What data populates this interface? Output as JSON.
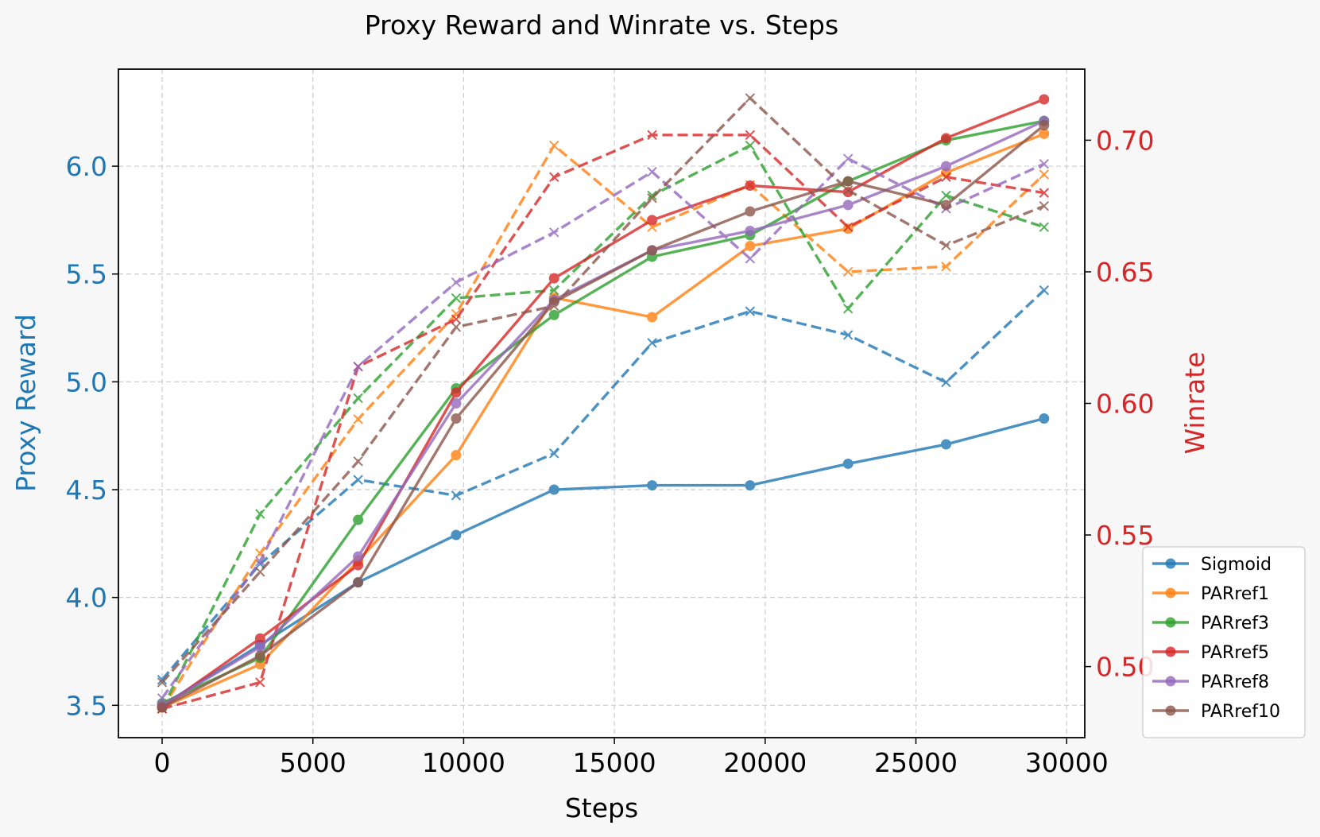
{
  "chart_data": {
    "type": "line",
    "title": "Proxy Reward and Winrate vs. Steps",
    "xlabel": "Steps",
    "ylabel_left": "Proxy Reward",
    "ylabel_right": "Winrate",
    "xlim": [
      -1450,
      30600
    ],
    "ylim_left": [
      3.35,
      6.45
    ],
    "ylim_right": [
      0.473,
      0.727
    ],
    "x_ticks": [
      0,
      5000,
      10000,
      15000,
      20000,
      25000,
      30000
    ],
    "y_ticks_left": [
      3.5,
      4.0,
      4.5,
      5.0,
      5.5,
      6.0
    ],
    "y_ticks_right": [
      0.5,
      0.55,
      0.6,
      0.65,
      0.7
    ],
    "x_tick_labels": [
      "0",
      "5000",
      "10000",
      "15000",
      "20000",
      "25000",
      "30000"
    ],
    "y_tick_labels_left": [
      "3.5",
      "4.0",
      "4.5",
      "5.0",
      "5.5",
      "6.0"
    ],
    "y_tick_labels_right": [
      "0.50",
      "0.55",
      "0.60",
      "0.65",
      "0.70"
    ],
    "grid": true,
    "legend_position": "right",
    "left_axis_color": "#1f77b4",
    "right_axis_color": "#d62728",
    "x": [
      0,
      3250,
      6500,
      9750,
      13000,
      16250,
      19500,
      22750,
      26000,
      29250
    ],
    "series": [
      {
        "name": "Sigmoid",
        "color": "#1f77b4",
        "proxy_reward": [
          3.5,
          3.78,
          4.07,
          4.29,
          4.5,
          4.52,
          4.52,
          4.62,
          4.71,
          4.83
        ],
        "winrate": [
          0.495,
          0.539,
          0.571,
          0.565,
          0.581,
          0.623,
          0.635,
          0.626,
          0.608,
          0.643
        ]
      },
      {
        "name": "PARref1",
        "color": "#ff7f0e",
        "proxy_reward": [
          3.49,
          3.69,
          4.17,
          4.66,
          5.39,
          5.3,
          5.63,
          5.71,
          5.97,
          6.15
        ],
        "winrate": [
          0.484,
          0.543,
          0.594,
          0.634,
          0.698,
          0.667,
          0.683,
          0.65,
          0.652,
          0.687
        ]
      },
      {
        "name": "PARref3",
        "color": "#2ca02c",
        "proxy_reward": [
          3.51,
          3.72,
          4.36,
          4.97,
          5.31,
          5.58,
          5.68,
          5.93,
          6.12,
          6.21
        ],
        "winrate": [
          0.484,
          0.558,
          0.602,
          0.64,
          0.643,
          0.679,
          0.698,
          0.636,
          0.679,
          0.667
        ]
      },
      {
        "name": "PARref5",
        "color": "#d62728",
        "proxy_reward": [
          3.49,
          3.81,
          4.15,
          4.95,
          5.48,
          5.75,
          5.91,
          5.88,
          6.13,
          6.31
        ],
        "winrate": [
          0.484,
          0.494,
          0.614,
          0.632,
          0.686,
          0.702,
          0.702,
          0.667,
          0.686,
          0.68
        ]
      },
      {
        "name": "PARref8",
        "color": "#9467bd",
        "proxy_reward": [
          3.5,
          3.77,
          4.19,
          4.9,
          5.38,
          5.61,
          5.7,
          5.82,
          6.0,
          6.21
        ],
        "winrate": [
          0.488,
          0.54,
          0.614,
          0.646,
          0.665,
          0.688,
          0.655,
          0.693,
          0.674,
          0.691
        ]
      },
      {
        "name": "PARref10",
        "color": "#8c564b",
        "proxy_reward": [
          3.49,
          3.73,
          4.07,
          4.83,
          5.37,
          5.61,
          5.79,
          5.93,
          5.82,
          6.19
        ],
        "winrate": [
          0.494,
          0.536,
          0.578,
          0.629,
          0.637,
          0.678,
          0.716,
          0.681,
          0.66,
          0.675
        ]
      }
    ]
  }
}
